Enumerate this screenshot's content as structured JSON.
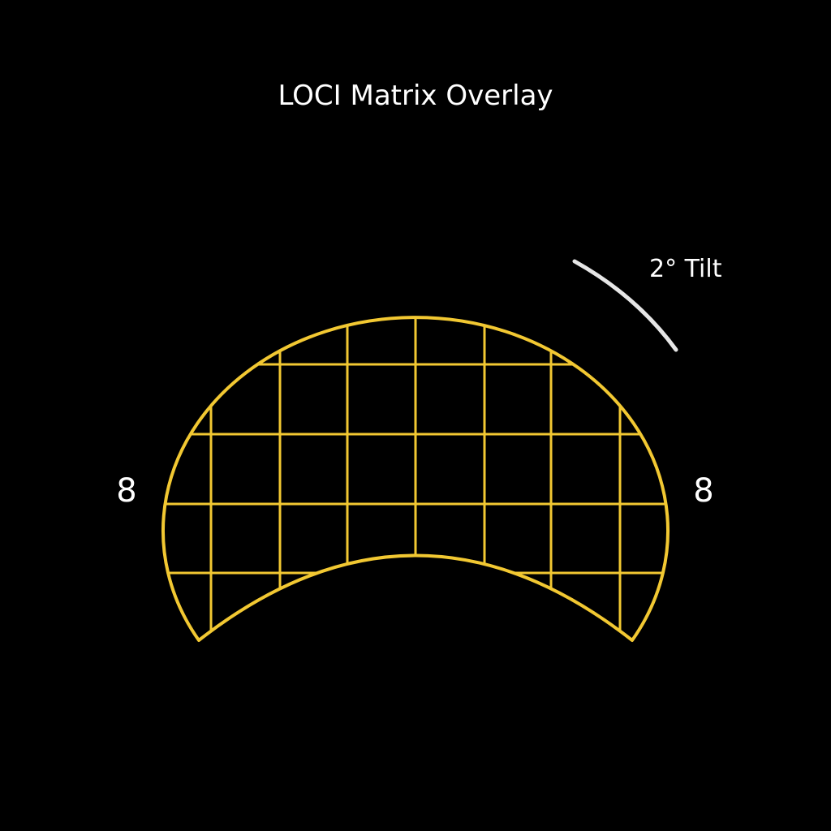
{
  "title": "LOCI Matrix Overlay",
  "labels": {
    "left": "8",
    "right": "8",
    "tilt": "2° Tilt"
  },
  "colors": {
    "background": "#000000",
    "grid": "#f2c832",
    "text": "#ffffff",
    "tilt_arc": "#e6e6e6"
  }
}
